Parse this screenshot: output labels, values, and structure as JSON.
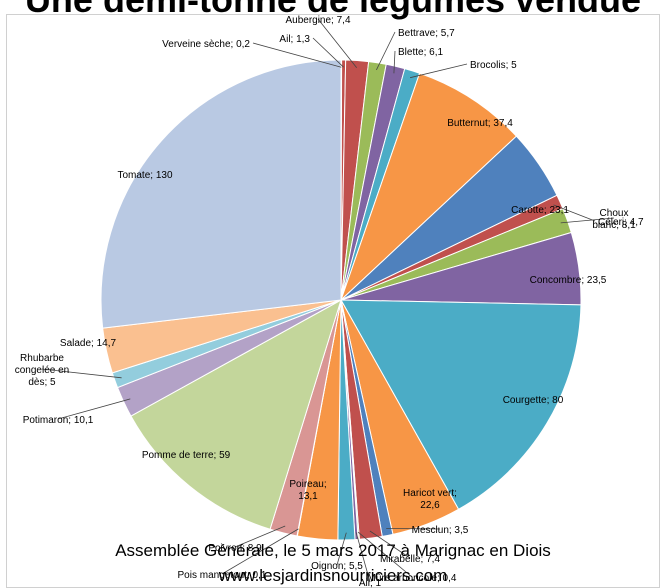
{
  "title": "Une demi-tonne de légumes vendue",
  "footer": {
    "line1": "Assemblée Générale, le 5 mars 2017 à Marignac en Diois",
    "line2": "www.lesjardinsnourriciers.com"
  },
  "chart_data": {
    "type": "pie",
    "title": "Une demi-tonne de légumes vendue",
    "legend": "none",
    "slices": [
      {
        "name": "Verveine sèche",
        "value": 0.2,
        "label": "Verveine sèche; 0,2",
        "color": "#4472c4"
      },
      {
        "name": "Ail",
        "value": 1.3,
        "label": "Ail; 1,3",
        "color": "#c0504d"
      },
      {
        "name": "Aubergine",
        "value": 7.4,
        "label": "Aubergine; 7,4",
        "color": "#c0504d"
      },
      {
        "name": "Bettrave",
        "value": 5.7,
        "label": "Bettrave; 5,7",
        "color": "#9bbb59"
      },
      {
        "name": "Blette",
        "value": 6.1,
        "label": "Blette; 6,1",
        "color": "#8064a2"
      },
      {
        "name": "Brocolis",
        "value": 5,
        "label": "Brocolis; 5",
        "color": "#4bacc6"
      },
      {
        "name": "Butternut",
        "value": 37.4,
        "label": "Butternut; 37,4",
        "color": "#f79646"
      },
      {
        "name": "Carotte",
        "value": 23.1,
        "label": "Carotte; 23,1",
        "color": "#4f81bd"
      },
      {
        "name": "Céleri",
        "value": 4.7,
        "label": "Céleri; 4,7",
        "color": "#c0504d"
      },
      {
        "name": "Choux blanc",
        "value": 8.1,
        "label": "Choux blanc; 8,1",
        "color": "#9bbb59"
      },
      {
        "name": "Concombre",
        "value": 23.5,
        "label": "Concombre; 23,5",
        "color": "#8064a2"
      },
      {
        "name": "Courgette",
        "value": 80,
        "label": "Courgette; 80",
        "color": "#4bacc6"
      },
      {
        "name": "Haricot vert",
        "value": 22.6,
        "label": "Haricot vert; 22,6",
        "color": "#f79646"
      },
      {
        "name": "Mesclun",
        "value": 3.5,
        "label": "Mesclun; 3,5",
        "color": "#4f81bd"
      },
      {
        "name": "Mirabelle",
        "value": 7.4,
        "label": "Mirabelle; 7,4",
        "color": "#c0504d"
      },
      {
        "name": "Mûre arboricole",
        "value": 0.4,
        "label": "Mûre arboricole; 0,4",
        "color": "#9bbb59"
      },
      {
        "name": "Ail",
        "value": 1,
        "label": "Ail; 1",
        "color": "#8064a2"
      },
      {
        "name": "Oignon",
        "value": 5.5,
        "label": "Oignon; 5,5",
        "color": "#4bacc6"
      },
      {
        "name": "Poireau",
        "value": 13.1,
        "label": "Poireau; 13,1",
        "color": "#f79646"
      },
      {
        "name": "Pois mangetout",
        "value": 0.1,
        "label": "Pois mangetout; 0,1",
        "color": "#4f81bd"
      },
      {
        "name": "Poivron",
        "value": 8.9,
        "label": "Poivron; 8,9",
        "color": "#d99694"
      },
      {
        "name": "Pomme de terre",
        "value": 59,
        "label": "Pomme de terre; 59",
        "color": "#c3d69b"
      },
      {
        "name": "Potimaron",
        "value": 10.1,
        "label": "Potimaron; 10,1",
        "color": "#b3a2c7"
      },
      {
        "name": "Rhubarbe congelée en dès",
        "value": 5,
        "label": "Rhubarbe congelée en dès; 5",
        "color": "#93cddd"
      },
      {
        "name": "Salade",
        "value": 14.7,
        "label": "Salade; 14,7",
        "color": "#fac090"
      },
      {
        "name": "Tomate",
        "value": 130,
        "label": "Tomate; 130",
        "color": "#b9c9e3"
      }
    ]
  }
}
